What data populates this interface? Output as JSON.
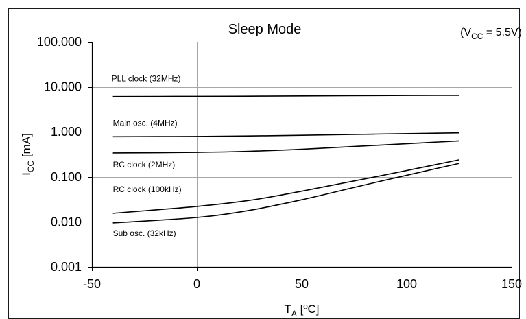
{
  "chart_data": {
    "type": "line",
    "title": "Sleep Mode",
    "condition": {
      "prefix": "(V",
      "sub": "CC",
      "suffix": " = 5.5V)"
    },
    "xlabel": {
      "main": "T",
      "sub": "A",
      "suffix": " [ºC]"
    },
    "ylabel": {
      "main": "I",
      "sub": "CC",
      "suffix": " [mA]"
    },
    "x_scale": "linear",
    "y_scale": "log",
    "xlim": [
      -50,
      150
    ],
    "ylim": [
      0.001,
      100
    ],
    "x_ticks": [
      -50,
      0,
      50,
      100,
      150
    ],
    "x_tick_labels": [
      "-50",
      "0",
      "50",
      "100",
      "150"
    ],
    "y_ticks": [
      0.001,
      0.01,
      0.1,
      1,
      10,
      100
    ],
    "y_tick_labels": [
      "0.001",
      "0.010",
      "0.100",
      "1.000",
      "10.000",
      "100.000"
    ],
    "grid": true,
    "series": [
      {
        "name": "PLL clock (32MHz)",
        "x": [
          -40,
          0,
          25,
          50,
          85,
          125
        ],
        "y": [
          6.1,
          6.15,
          6.2,
          6.3,
          6.4,
          6.5
        ]
      },
      {
        "name": "Main osc. (4MHz)",
        "x": [
          -40,
          0,
          25,
          50,
          85,
          125
        ],
        "y": [
          0.78,
          0.79,
          0.81,
          0.84,
          0.89,
          0.95
        ]
      },
      {
        "name": "RC clock (2MHz)",
        "x": [
          -40,
          0,
          25,
          50,
          85,
          125
        ],
        "y": [
          0.34,
          0.35,
          0.37,
          0.41,
          0.5,
          0.63
        ]
      },
      {
        "name": "RC clock (100kHz)",
        "x": [
          -40,
          0,
          25,
          50,
          85,
          125
        ],
        "y": [
          0.0155,
          0.022,
          0.03,
          0.048,
          0.1,
          0.24
        ]
      },
      {
        "name": "Sub osc. (32kHz)",
        "x": [
          -40,
          0,
          25,
          50,
          85,
          125
        ],
        "y": [
          0.0095,
          0.0125,
          0.018,
          0.031,
          0.075,
          0.2
        ]
      }
    ]
  }
}
